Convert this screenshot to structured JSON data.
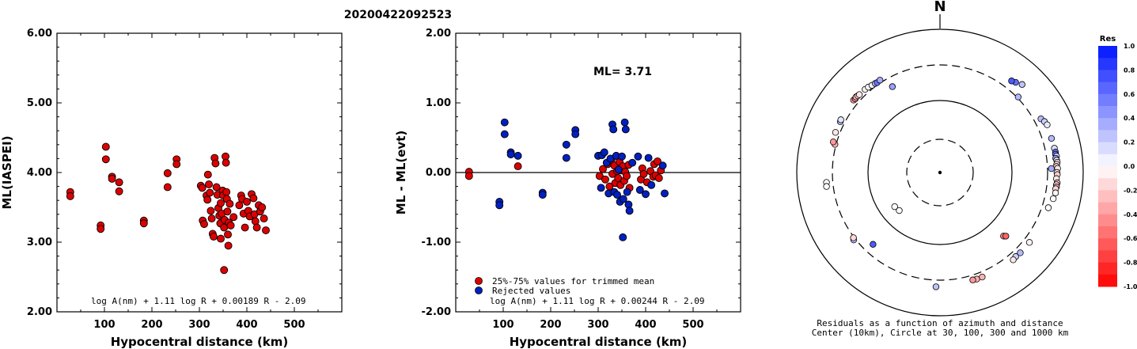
{
  "figure": {
    "title": "20200422092523"
  },
  "chart_data": [
    {
      "type": "scatter",
      "name": "ml-vs-distance",
      "xlabel": "Hypocentral distance (km)",
      "ylabel": "ML(IASPEI)",
      "xlim": [
        0,
        600
      ],
      "ylim": [
        2.0,
        6.0
      ],
      "xticks": [
        "100",
        "200",
        "300",
        "400",
        "500"
      ],
      "yticks": [
        "2.00",
        "3.00",
        "4.00",
        "5.00",
        "6.00"
      ],
      "formula": "log A(nm) + 1.11 log R + 0.00189 R - 2.09",
      "marker_color": "#dd0000",
      "points": [
        [
          28,
          3.72
        ],
        [
          28,
          3.66
        ],
        [
          92,
          3.24
        ],
        [
          92,
          3.19
        ],
        [
          103,
          4.37
        ],
        [
          103,
          4.19
        ],
        [
          116,
          3.94
        ],
        [
          116,
          3.91
        ],
        [
          131,
          3.86
        ],
        [
          131,
          3.73
        ],
        [
          183,
          3.31
        ],
        [
          183,
          3.27
        ],
        [
          233,
          3.99
        ],
        [
          233,
          3.79
        ],
        [
          252,
          4.19
        ],
        [
          252,
          4.12
        ],
        [
          303,
          3.81
        ],
        [
          306,
          3.78
        ],
        [
          307,
          3.31
        ],
        [
          310,
          3.26
        ],
        [
          315,
          3.67
        ],
        [
          317,
          3.61
        ],
        [
          318,
          3.97
        ],
        [
          320,
          3.83
        ],
        [
          322,
          3.71
        ],
        [
          324,
          3.45
        ],
        [
          326,
          3.34
        ],
        [
          328,
          3.12
        ],
        [
          330,
          3.08
        ],
        [
          332,
          4.21
        ],
        [
          334,
          4.13
        ],
        [
          336,
          3.79
        ],
        [
          338,
          3.68
        ],
        [
          340,
          3.49
        ],
        [
          342,
          3.38
        ],
        [
          344,
          3.27
        ],
        [
          345,
          3.56
        ],
        [
          347,
          3.41
        ],
        [
          349,
          3.74
        ],
        [
          350,
          3.67
        ],
        [
          352,
          3.21
        ],
        [
          353,
          3.32
        ],
        [
          355,
          4.23
        ],
        [
          356,
          4.14
        ],
        [
          357,
          3.72
        ],
        [
          358,
          3.62
        ],
        [
          359,
          3.44
        ],
        [
          360,
          3.11
        ],
        [
          361,
          2.95
        ],
        [
          362,
          3.28
        ],
        [
          364,
          3.55
        ],
        [
          366,
          3.24
        ],
        [
          352,
          2.6
        ],
        [
          384,
          3.53
        ],
        [
          388,
          3.67
        ],
        [
          390,
          3.62
        ],
        [
          393,
          3.41
        ],
        [
          396,
          3.21
        ],
        [
          400,
          3.58
        ],
        [
          403,
          3.45
        ],
        [
          406,
          3.37
        ],
        [
          410,
          3.69
        ],
        [
          414,
          3.63
        ],
        [
          416,
          3.4
        ],
        [
          418,
          3.3
        ],
        [
          421,
          3.21
        ],
        [
          425,
          3.53
        ],
        [
          428,
          3.44
        ],
        [
          432,
          3.5
        ],
        [
          436,
          3.34
        ],
        [
          440,
          3.17
        ],
        [
          345,
          3.05
        ],
        [
          372,
          3.36
        ]
      ]
    },
    {
      "type": "scatter",
      "name": "residual-vs-distance",
      "xlabel": "Hypocentral distance (km)",
      "ylabel": "ML - ML(evt)",
      "xlim": [
        0,
        600
      ],
      "ylim": [
        -2.0,
        2.0
      ],
      "xticks": [
        "100",
        "200",
        "300",
        "400",
        "500"
      ],
      "yticks": [
        "-2.00",
        "-1.00",
        "0.00",
        "1.00",
        "2.00"
      ],
      "ml_label": "ML= 3.71",
      "formula": "log A(nm) + 1.11 log R + 0.00244 R - 2.09",
      "legend": [
        {
          "label": "25%-75% values for trimmed mean",
          "color": "#dd0000"
        },
        {
          "label": "Rejected values",
          "color": "#0020c0"
        }
      ],
      "series": [
        {
          "name": "25%-75% values for trimmed mean",
          "color": "#dd0000",
          "points": [
            [
              28,
              0.01
            ],
            [
              28,
              -0.05
            ],
            [
              131,
              0.09
            ],
            [
              303,
              -0.05
            ],
            [
              310,
              0.05
            ],
            [
              315,
              -0.1
            ],
            [
              320,
              0.12
            ],
            [
              324,
              -0.2
            ],
            [
              328,
              0.18
            ],
            [
              330,
              -0.02
            ],
            [
              334,
              0.1
            ],
            [
              336,
              -0.15
            ],
            [
              340,
              0.02
            ],
            [
              342,
              -0.08
            ],
            [
              345,
              0.15
            ],
            [
              347,
              -0.18
            ],
            [
              349,
              0.03
            ],
            [
              352,
              0.09
            ],
            [
              355,
              -0.12
            ],
            [
              357,
              0.01
            ],
            [
              360,
              -0.05
            ],
            [
              364,
              0.11
            ],
            [
              366,
              -0.22
            ],
            [
              390,
              -0.1
            ],
            [
              393,
              0.06
            ],
            [
              396,
              -0.02
            ],
            [
              403,
              -0.14
            ],
            [
              410,
              0.02
            ],
            [
              416,
              -0.06
            ],
            [
              418,
              0.12
            ],
            [
              421,
              -0.04
            ],
            [
              425,
              0.16
            ],
            [
              428,
              -0.08
            ],
            [
              432,
              0.03
            ]
          ]
        },
        {
          "name": "Rejected values",
          "color": "#0020c0",
          "points": [
            [
              92,
              -0.42
            ],
            [
              92,
              -0.47
            ],
            [
              103,
              0.72
            ],
            [
              103,
              0.55
            ],
            [
              116,
              0.29
            ],
            [
              116,
              0.26
            ],
            [
              131,
              0.24
            ],
            [
              183,
              -0.29
            ],
            [
              183,
              -0.32
            ],
            [
              233,
              0.4
            ],
            [
              233,
              0.21
            ],
            [
              252,
              0.61
            ],
            [
              252,
              0.55
            ],
            [
              300,
              0.24
            ],
            [
              306,
              -0.22
            ],
            [
              308,
              0.25
            ],
            [
              313,
              0.29
            ],
            [
              318,
              0.14
            ],
            [
              322,
              -0.3
            ],
            [
              326,
              0.2
            ],
            [
              330,
              0.69
            ],
            [
              332,
              0.62
            ],
            [
              334,
              -0.28
            ],
            [
              338,
              0.24
            ],
            [
              340,
              -0.32
            ],
            [
              343,
              0.04
            ],
            [
              346,
              -0.42
            ],
            [
              350,
              0.23
            ],
            [
              353,
              -0.38
            ],
            [
              356,
              0.72
            ],
            [
              358,
              0.62
            ],
            [
              361,
              -0.28
            ],
            [
              364,
              -0.46
            ],
            [
              366,
              -0.55
            ],
            [
              352,
              -0.93
            ],
            [
              384,
              0.23
            ],
            [
              388,
              -0.25
            ],
            [
              400,
              -0.31
            ],
            [
              406,
              0.21
            ],
            [
              412,
              -0.18
            ],
            [
              436,
              0.1
            ],
            [
              440,
              -0.3
            ],
            [
              372,
              0.14
            ]
          ]
        }
      ]
    },
    {
      "type": "scatter",
      "name": "azimuth-distance-map",
      "north_label": "N",
      "caption_line1": "Residuals as a function of azimuth and distance",
      "caption_line2": "Center (10km), Circle at 30, 100, 300 and 1000 km",
      "colorbar": {
        "title": "Res",
        "ticks": [
          "1.0",
          "0.8",
          "0.6",
          "0.4",
          "0.2",
          "0.0",
          "-0.2",
          "-0.4",
          "-0.6",
          "-0.8",
          "-1.0"
        ],
        "range": [
          -1.0,
          1.0
        ]
      },
      "points": [
        {
          "az": 43,
          "dist": 480,
          "res": 0.25
        },
        {
          "az": 40,
          "dist": 440,
          "res": 0.6
        },
        {
          "az": 38,
          "dist": 420,
          "res": 0.7
        },
        {
          "az": 46,
          "dist": 330,
          "res": 0.3
        },
        {
          "az": 62,
          "dist": 395,
          "res": 0.3
        },
        {
          "az": 64,
          "dist": 420,
          "res": 0.2
        },
        {
          "az": 66,
          "dist": 435,
          "res": 0.1
        },
        {
          "az": 73,
          "dist": 425,
          "res": 0.3
        },
        {
          "az": 78,
          "dist": 430,
          "res": 0.15
        },
        {
          "az": 80,
          "dist": 435,
          "res": 0.55
        },
        {
          "az": 81,
          "dist": 430,
          "res": 0.6
        },
        {
          "az": 82,
          "dist": 440,
          "res": 0.2
        },
        {
          "az": 83,
          "dist": 425,
          "res": 0.4
        },
        {
          "az": 84,
          "dist": 435,
          "res": 0.05
        },
        {
          "az": 85,
          "dist": 440,
          "res": -0.15
        },
        {
          "az": 86,
          "dist": 430,
          "res": 0.1
        },
        {
          "az": 87,
          "dist": 425,
          "res": -0.3
        },
        {
          "az": 88,
          "dist": 440,
          "res": -0.1
        },
        {
          "az": 90,
          "dist": 430,
          "res": 0.0
        },
        {
          "az": 91,
          "dist": 435,
          "res": -0.2
        },
        {
          "az": 93,
          "dist": 425,
          "res": -0.1
        },
        {
          "az": 95,
          "dist": 440,
          "res": -0.25
        },
        {
          "az": 96,
          "dist": 432,
          "res": 0.05
        },
        {
          "az": 97,
          "dist": 436,
          "res": -0.4
        },
        {
          "az": 98,
          "dist": 428,
          "res": -0.15
        },
        {
          "az": 100,
          "dist": 435,
          "res": -0.05
        },
        {
          "az": 103,
          "dist": 420,
          "res": 0.0
        },
        {
          "az": 88,
          "dist": 360,
          "res": 0.35
        },
        {
          "az": 108,
          "dist": 390,
          "res": 0.0
        },
        {
          "az": 135,
          "dist": 180,
          "res": -0.5
        },
        {
          "az": 134,
          "dist": 190,
          "res": -0.6
        },
        {
          "az": 135,
          "dist": 385,
          "res": 0.3
        },
        {
          "az": 138,
          "dist": 380,
          "res": 0.2
        },
        {
          "az": 140,
          "dist": 390,
          "res": -0.1
        },
        {
          "az": 128,
          "dist": 385,
          "res": -0.05
        },
        {
          "az": 158,
          "dist": 375,
          "res": -0.3
        },
        {
          "az": 161,
          "dist": 375,
          "res": -0.3
        },
        {
          "az": 163,
          "dist": 370,
          "res": -0.4
        },
        {
          "az": 182,
          "dist": 395,
          "res": 0.25
        },
        {
          "az": 223,
          "dist": 235,
          "res": 0.7
        },
        {
          "az": 232,
          "dist": 338,
          "res": 0.3
        },
        {
          "az": 233,
          "dist": 326,
          "res": -0.15
        },
        {
          "az": 227,
          "dist": 60,
          "res": 0.0
        },
        {
          "az": 233,
          "dist": 62,
          "res": 0.0
        },
        {
          "az": 265,
          "dist": 390,
          "res": 0.0
        },
        {
          "az": 263,
          "dist": 395,
          "res": 0.0
        },
        {
          "az": 285,
          "dist": 330,
          "res": -0.3
        },
        {
          "az": 286,
          "dist": 355,
          "res": -0.4
        },
        {
          "az": 297,
          "dist": 365,
          "res": 0.25
        },
        {
          "az": 298,
          "dist": 370,
          "res": 0.1
        },
        {
          "az": 291,
          "dist": 365,
          "res": -0.1
        },
        {
          "az": 310,
          "dist": 375,
          "res": -0.35
        },
        {
          "az": 311,
          "dist": 370,
          "res": -0.5
        },
        {
          "az": 312,
          "dist": 378,
          "res": -0.2
        },
        {
          "az": 313,
          "dist": 372,
          "res": -0.25
        },
        {
          "az": 314,
          "dist": 368,
          "res": -0.1
        },
        {
          "az": 318,
          "dist": 365,
          "res": -0.05
        },
        {
          "az": 320,
          "dist": 360,
          "res": 0.0
        },
        {
          "az": 322,
          "dist": 350,
          "res": 0.05
        },
        {
          "az": 324,
          "dist": 345,
          "res": 0.2
        },
        {
          "az": 325,
          "dist": 340,
          "res": 0.6
        },
        {
          "az": 327,
          "dist": 345,
          "res": 0.35
        },
        {
          "az": 331,
          "dist": 235,
          "res": 0.4
        }
      ]
    }
  ]
}
